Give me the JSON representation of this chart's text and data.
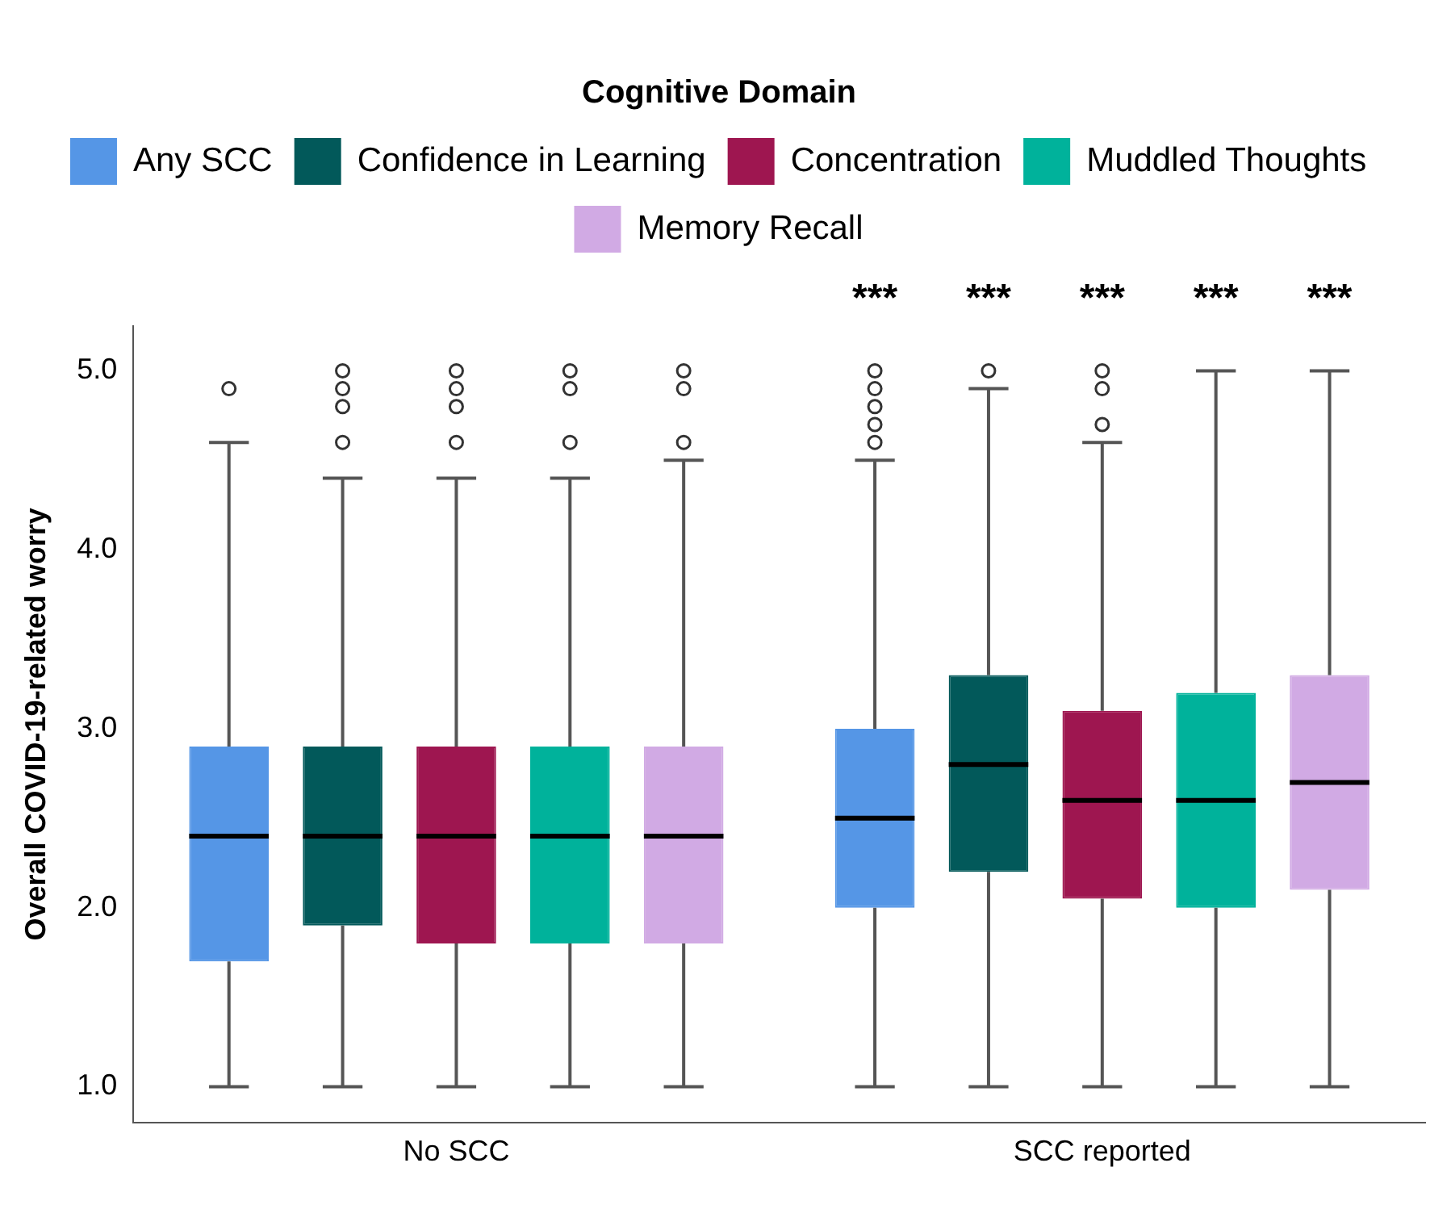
{
  "chart_data": {
    "type": "box",
    "legend_title": "Cognitive Domain",
    "legend": "top",
    "ylabel": "Overall COVID-19-related worry",
    "categories": [
      "No SCC",
      "SCC reported"
    ],
    "ylim": [
      0.8,
      5.25
    ],
    "yticks": [
      {
        "value": 1,
        "label": "1.0"
      },
      {
        "value": 2,
        "label": "2.0"
      },
      {
        "value": 3,
        "label": "3.0"
      },
      {
        "value": 4,
        "label": "4.0"
      },
      {
        "value": 5,
        "label": "5.0"
      }
    ],
    "grid": false,
    "series": [
      {
        "name": "Any SCC",
        "color": "#5596e6",
        "boxes": [
          {
            "low": 1.0,
            "q1": 1.7,
            "median": 2.4,
            "q3": 2.9,
            "high": 4.6,
            "outliers": [
              4.9
            ]
          },
          {
            "low": 1.0,
            "q1": 2.0,
            "median": 2.5,
            "q3": 3.0,
            "high": 4.5,
            "outliers": [
              5.0,
              4.9,
              4.8,
              4.7,
              4.6
            ]
          }
        ]
      },
      {
        "name": "Confidence in Learning",
        "color": "#02595a",
        "boxes": [
          {
            "low": 1.0,
            "q1": 1.9,
            "median": 2.4,
            "q3": 2.9,
            "high": 4.4,
            "outliers": [
              5.0,
              4.9,
              4.8,
              4.6
            ]
          },
          {
            "low": 1.0,
            "q1": 2.2,
            "median": 2.8,
            "q3": 3.3,
            "high": 4.9,
            "outliers": [
              5.0
            ]
          }
        ]
      },
      {
        "name": "Concentration",
        "color": "#9e1650",
        "boxes": [
          {
            "low": 1.0,
            "q1": 1.8,
            "median": 2.4,
            "q3": 2.9,
            "high": 4.4,
            "outliers": [
              5.0,
              4.9,
              4.8,
              4.6
            ]
          },
          {
            "low": 1.0,
            "q1": 2.05,
            "median": 2.6,
            "q3": 3.1,
            "high": 4.6,
            "outliers": [
              5.0,
              4.9,
              4.7
            ]
          }
        ]
      },
      {
        "name": "Muddled Thoughts",
        "color": "#00b29b",
        "boxes": [
          {
            "low": 1.0,
            "q1": 1.8,
            "median": 2.4,
            "q3": 2.9,
            "high": 4.4,
            "outliers": [
              5.0,
              4.9,
              4.6
            ]
          },
          {
            "low": 1.0,
            "q1": 2.0,
            "median": 2.6,
            "q3": 3.2,
            "high": 5.0
          }
        ]
      },
      {
        "name": "Memory Recall",
        "color": "#d1aae4",
        "boxes": [
          {
            "low": 1.0,
            "q1": 1.8,
            "median": 2.4,
            "q3": 2.9,
            "high": 4.5,
            "outliers": [
              5.0,
              4.9,
              4.6
            ]
          },
          {
            "low": 1.0,
            "q1": 2.1,
            "median": 2.7,
            "q3": 3.3,
            "high": 5.0
          }
        ]
      }
    ],
    "annotations": [
      "***",
      "***",
      "***",
      "***",
      "***"
    ]
  }
}
